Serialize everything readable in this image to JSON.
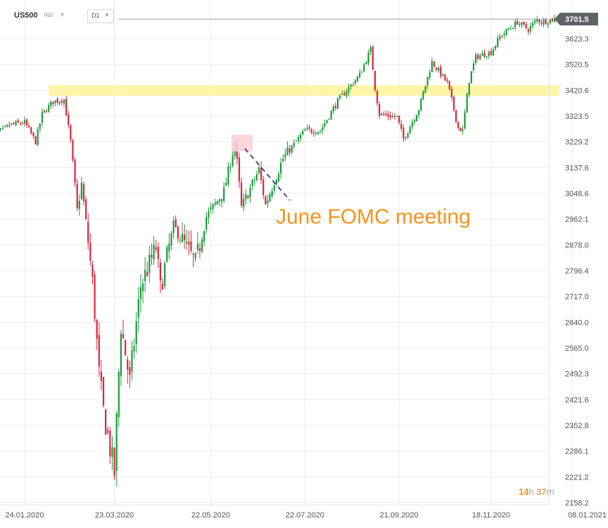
{
  "header": {
    "symbol": "US500",
    "symbol_type": "IND",
    "timeframe": "D1",
    "chevron_icon": "chevron-down-icon"
  },
  "annotation": {
    "text": "June FOMC meeting"
  },
  "countdown": {
    "hours": "14",
    "h": "h",
    "minutes": "37",
    "m": "m"
  },
  "colors": {
    "up": "#1a9a3a",
    "down": "#d8253d",
    "zone": "#fff39a",
    "marker": "#f8d3d8",
    "dashed_line": "#5b3fa8",
    "annotation": "#f7931e",
    "price_badge": "#5f6368"
  },
  "chart_data": {
    "type": "candlestick",
    "title": "",
    "xlabel": "",
    "ylabel": "",
    "grid": true,
    "x_tick_labels": [
      "24.01.2020",
      "23.03.2020",
      "22.05.2020",
      "22.07.2020",
      "21.09.2020",
      "18.11.2020",
      "08.01.2021"
    ],
    "y_tick_labels": [
      "3623.3",
      "3520.5",
      "3420.6",
      "3323.5",
      "3229.2",
      "3137.6",
      "3048.6",
      "2962.1",
      "2878.0",
      "2796.4",
      "2717.0",
      "2640.0",
      "2565.0",
      "2492.3",
      "2421.6",
      "2352.8",
      "2286.1",
      "2221.2",
      "2158.2"
    ],
    "y_tick_values": [
      3623.3,
      3520.5,
      3420.6,
      3323.5,
      3229.2,
      3137.6,
      3048.6,
      2962.1,
      2878.0,
      2796.4,
      2717.0,
      2640.0,
      2565.0,
      2492.3,
      2421.6,
      2352.8,
      2286.1,
      2221.2,
      2158.2
    ],
    "current_price": 3701.5,
    "current_price_label": "3701.5",
    "resistance_zone": [
      3400,
      3440
    ],
    "june_fomc_marker": {
      "date": "2020-06-10",
      "price_range": [
        3210,
        3240
      ]
    },
    "close_path": [
      [
        "2020-01-02",
        3258
      ],
      [
        "2020-01-10",
        3270
      ],
      [
        "2020-01-15",
        3290
      ],
      [
        "2020-01-24",
        3300
      ],
      [
        "2020-01-31",
        3230
      ],
      [
        "2020-02-05",
        3330
      ],
      [
        "2020-02-12",
        3378
      ],
      [
        "2020-02-19",
        3386
      ],
      [
        "2020-02-24",
        3230
      ],
      [
        "2020-02-27",
        2990
      ],
      [
        "2020-03-02",
        3080
      ],
      [
        "2020-03-09",
        2760
      ],
      [
        "2020-03-12",
        2490
      ],
      [
        "2020-03-16",
        2390
      ],
      [
        "2020-03-23",
        2230
      ],
      [
        "2020-03-26",
        2630
      ],
      [
        "2020-04-01",
        2470
      ],
      [
        "2020-04-08",
        2750
      ],
      [
        "2020-04-17",
        2870
      ],
      [
        "2020-04-21",
        2740
      ],
      [
        "2020-04-29",
        2940
      ],
      [
        "2020-05-13",
        2820
      ],
      [
        "2020-05-20",
        2970
      ],
      [
        "2020-06-01",
        3055
      ],
      [
        "2020-06-05",
        3190
      ],
      [
        "2020-06-08",
        3232
      ],
      [
        "2020-06-11",
        3000
      ],
      [
        "2020-06-23",
        3130
      ],
      [
        "2020-06-26",
        3010
      ],
      [
        "2020-07-08",
        3170
      ],
      [
        "2020-07-22",
        3270
      ],
      [
        "2020-07-31",
        3270
      ],
      [
        "2020-08-12",
        3380
      ],
      [
        "2020-08-26",
        3480
      ],
      [
        "2020-09-02",
        3580
      ],
      [
        "2020-09-04",
        3430
      ],
      [
        "2020-09-08",
        3330
      ],
      [
        "2020-09-18",
        3320
      ],
      [
        "2020-09-23",
        3240
      ],
      [
        "2020-10-02",
        3350
      ],
      [
        "2020-10-12",
        3530
      ],
      [
        "2020-10-21",
        3450
      ],
      [
        "2020-10-28",
        3280
      ],
      [
        "2020-10-30",
        3270
      ],
      [
        "2020-11-04",
        3460
      ],
      [
        "2020-11-09",
        3550
      ],
      [
        "2020-11-18",
        3570
      ],
      [
        "2020-11-24",
        3630
      ],
      [
        "2020-12-04",
        3690
      ],
      [
        "2020-12-11",
        3660
      ],
      [
        "2020-12-17",
        3700
      ],
      [
        "2020-12-21",
        3690
      ],
      [
        "2020-12-29",
        3701.5
      ]
    ]
  }
}
